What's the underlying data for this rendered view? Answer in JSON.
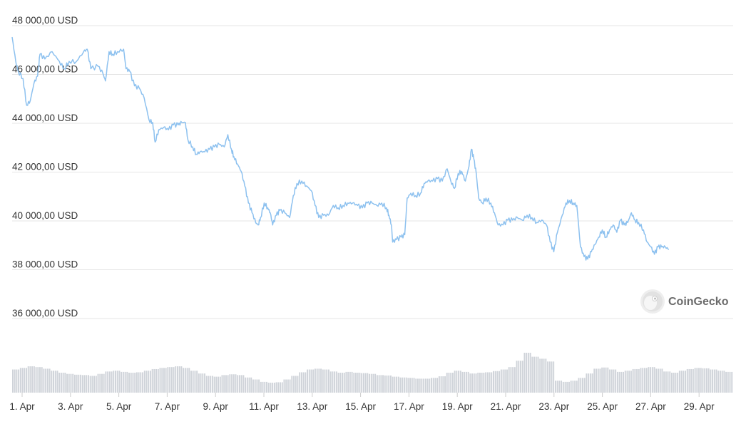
{
  "colors": {
    "line": "#8dc1ef",
    "volume": "#cfd3d9",
    "grid": "#e6e6e6",
    "text": "#333333"
  },
  "watermark": {
    "icon": "coingecko-logo-icon",
    "text": "CoinGecko"
  },
  "chart_data": {
    "type": "line",
    "title": "",
    "xlabel": "",
    "ylabel": "",
    "grid": true,
    "y_unit": "USD",
    "ylim": [
      35000,
      48500
    ],
    "xlim": [
      0.85,
      30.6
    ],
    "y_ticks": [
      {
        "value": 48000,
        "label": "48 000,00 USD"
      },
      {
        "value": 46000,
        "label": "46 000,00 USD"
      },
      {
        "value": 44000,
        "label": "44 000,00 USD"
      },
      {
        "value": 42000,
        "label": "42 000,00 USD"
      },
      {
        "value": 40000,
        "label": "40 000,00 USD"
      },
      {
        "value": 38000,
        "label": "38 000,00 USD"
      },
      {
        "value": 36000,
        "label": "36 000,00 USD"
      }
    ],
    "x_ticks": [
      {
        "day": 1,
        "label": "1. Apr"
      },
      {
        "day": 3,
        "label": "3. Apr"
      },
      {
        "day": 5,
        "label": "5. Apr"
      },
      {
        "day": 7,
        "label": "7. Apr"
      },
      {
        "day": 9,
        "label": "9. Apr"
      },
      {
        "day": 11,
        "label": "11. Apr"
      },
      {
        "day": 13,
        "label": "13. Apr"
      },
      {
        "day": 15,
        "label": "15. Apr"
      },
      {
        "day": 17,
        "label": "17. Apr"
      },
      {
        "day": 19,
        "label": "19. Apr"
      },
      {
        "day": 21,
        "label": "21. Apr"
      },
      {
        "day": 23,
        "label": "23. Apr"
      },
      {
        "day": 25,
        "label": "25. Apr"
      },
      {
        "day": 27,
        "label": "27. Apr"
      },
      {
        "day": 29,
        "label": "29. Apr"
      }
    ],
    "series": [
      {
        "values_note_free": true,
        "points": [
          [
            0.85,
            47300
          ],
          [
            1.0,
            46300
          ],
          [
            1.1,
            45900
          ],
          [
            1.3,
            45600
          ],
          [
            1.45,
            44500
          ],
          [
            1.6,
            44700
          ],
          [
            1.75,
            45400
          ],
          [
            1.9,
            45700
          ],
          [
            2.0,
            46600
          ],
          [
            2.2,
            46400
          ],
          [
            2.5,
            46700
          ],
          [
            2.8,
            46300
          ],
          [
            3.0,
            46000
          ],
          [
            3.2,
            46300
          ],
          [
            3.5,
            46300
          ],
          [
            3.8,
            46700
          ],
          [
            3.95,
            46800
          ],
          [
            4.1,
            46000
          ],
          [
            4.4,
            46100
          ],
          [
            4.6,
            45800
          ],
          [
            4.7,
            45500
          ],
          [
            4.85,
            46700
          ],
          [
            5.0,
            46600
          ],
          [
            5.2,
            46700
          ],
          [
            5.45,
            46800
          ],
          [
            5.55,
            46000
          ],
          [
            5.7,
            45900
          ],
          [
            5.9,
            45300
          ],
          [
            6.1,
            45200
          ],
          [
            6.3,
            44800
          ],
          [
            6.5,
            43900
          ],
          [
            6.65,
            43800
          ],
          [
            6.75,
            43000
          ],
          [
            6.9,
            43500
          ],
          [
            7.1,
            43600
          ],
          [
            7.3,
            43500
          ],
          [
            7.5,
            43700
          ],
          [
            7.7,
            43700
          ],
          [
            7.85,
            43800
          ],
          [
            8.0,
            43800
          ],
          [
            8.1,
            43100
          ],
          [
            8.3,
            42800
          ],
          [
            8.45,
            42500
          ],
          [
            8.6,
            42600
          ],
          [
            8.8,
            42600
          ],
          [
            9.0,
            42700
          ],
          [
            9.2,
            42800
          ],
          [
            9.4,
            42900
          ],
          [
            9.6,
            42800
          ],
          [
            9.75,
            43300
          ],
          [
            9.9,
            42700
          ],
          [
            10.0,
            42400
          ],
          [
            10.15,
            42100
          ],
          [
            10.3,
            41800
          ],
          [
            10.45,
            41200
          ],
          [
            10.6,
            40500
          ],
          [
            10.75,
            40100
          ],
          [
            10.9,
            39700
          ],
          [
            11.0,
            39600
          ],
          [
            11.1,
            39900
          ],
          [
            11.25,
            40500
          ],
          [
            11.4,
            40300
          ],
          [
            11.5,
            40100
          ],
          [
            11.6,
            39600
          ],
          [
            11.75,
            40000
          ],
          [
            11.9,
            40200
          ],
          [
            12.1,
            40100
          ],
          [
            12.3,
            39900
          ],
          [
            12.45,
            40800
          ],
          [
            12.6,
            41300
          ],
          [
            12.8,
            41400
          ],
          [
            13.0,
            41200
          ],
          [
            13.2,
            41000
          ],
          [
            13.35,
            40400
          ],
          [
            13.5,
            39900
          ],
          [
            13.7,
            40000
          ],
          [
            13.9,
            40000
          ],
          [
            14.1,
            40400
          ],
          [
            14.3,
            40300
          ],
          [
            14.5,
            40400
          ],
          [
            14.7,
            40500
          ],
          [
            14.9,
            40500
          ],
          [
            15.1,
            40400
          ],
          [
            15.3,
            40300
          ],
          [
            15.5,
            40500
          ],
          [
            15.7,
            40500
          ],
          [
            15.9,
            40400
          ],
          [
            16.1,
            40500
          ],
          [
            16.3,
            40300
          ],
          [
            16.4,
            40000
          ],
          [
            16.5,
            39600
          ],
          [
            16.55,
            38900
          ],
          [
            16.7,
            39000
          ],
          [
            16.9,
            39100
          ],
          [
            17.05,
            39200
          ],
          [
            17.15,
            40700
          ],
          [
            17.3,
            40900
          ],
          [
            17.5,
            40800
          ],
          [
            17.7,
            40900
          ],
          [
            17.85,
            41300
          ],
          [
            18.0,
            41400
          ],
          [
            18.2,
            41400
          ],
          [
            18.4,
            41500
          ],
          [
            18.6,
            41400
          ],
          [
            18.8,
            41900
          ],
          [
            18.95,
            41400
          ],
          [
            19.1,
            41100
          ],
          [
            19.25,
            41700
          ],
          [
            19.4,
            41800
          ],
          [
            19.55,
            41400
          ],
          [
            19.7,
            42000
          ],
          [
            19.8,
            42700
          ],
          [
            19.9,
            42300
          ],
          [
            20.0,
            41700
          ],
          [
            20.1,
            40700
          ],
          [
            20.25,
            40500
          ],
          [
            20.4,
            40700
          ],
          [
            20.6,
            40500
          ],
          [
            20.75,
            40100
          ],
          [
            20.9,
            39600
          ],
          [
            21.1,
            39600
          ],
          [
            21.3,
            39800
          ],
          [
            21.5,
            39800
          ],
          [
            21.7,
            39900
          ],
          [
            21.9,
            39800
          ],
          [
            22.1,
            40000
          ],
          [
            22.3,
            39900
          ],
          [
            22.5,
            39700
          ],
          [
            22.7,
            39800
          ],
          [
            22.9,
            39600
          ],
          [
            23.05,
            38900
          ],
          [
            23.2,
            38500
          ],
          [
            23.35,
            39300
          ],
          [
            23.55,
            40000
          ],
          [
            23.7,
            40500
          ],
          [
            23.85,
            40600
          ],
          [
            24.0,
            40500
          ],
          [
            24.15,
            40400
          ],
          [
            24.3,
            38700
          ],
          [
            24.45,
            38300
          ],
          [
            24.6,
            38200
          ],
          [
            24.75,
            38500
          ],
          [
            24.9,
            38800
          ],
          [
            25.05,
            39100
          ],
          [
            25.2,
            39400
          ],
          [
            25.35,
            39100
          ],
          [
            25.5,
            39400
          ],
          [
            25.65,
            39600
          ],
          [
            25.8,
            39300
          ],
          [
            25.95,
            39800
          ],
          [
            26.1,
            39600
          ],
          [
            26.25,
            39700
          ],
          [
            26.4,
            40100
          ],
          [
            26.55,
            39800
          ],
          [
            26.7,
            39700
          ],
          [
            26.9,
            39400
          ],
          [
            27.05,
            38900
          ],
          [
            27.2,
            38700
          ],
          [
            27.35,
            38400
          ],
          [
            27.5,
            38700
          ],
          [
            27.65,
            38700
          ],
          [
            27.8,
            38700
          ],
          [
            27.95,
            38600
          ]
        ]
      }
    ],
    "volume": {
      "note": "relative volume per time bucket, 0-1 scale",
      "values": [
        0.58,
        0.62,
        0.66,
        0.64,
        0.6,
        0.55,
        0.5,
        0.47,
        0.45,
        0.44,
        0.42,
        0.47,
        0.53,
        0.55,
        0.52,
        0.5,
        0.51,
        0.55,
        0.59,
        0.62,
        0.64,
        0.66,
        0.62,
        0.55,
        0.48,
        0.42,
        0.4,
        0.44,
        0.46,
        0.44,
        0.38,
        0.33,
        0.27,
        0.25,
        0.26,
        0.33,
        0.42,
        0.51,
        0.58,
        0.6,
        0.58,
        0.53,
        0.5,
        0.52,
        0.5,
        0.49,
        0.47,
        0.44,
        0.43,
        0.4,
        0.38,
        0.37,
        0.35,
        0.35,
        0.37,
        0.41,
        0.5,
        0.55,
        0.52,
        0.48,
        0.5,
        0.51,
        0.54,
        0.58,
        0.64,
        0.8,
        1.0,
        0.9,
        0.85,
        0.78,
        0.3,
        0.27,
        0.3,
        0.37,
        0.48,
        0.6,
        0.63,
        0.58,
        0.52,
        0.55,
        0.59,
        0.62,
        0.64,
        0.6,
        0.53,
        0.5,
        0.55,
        0.59,
        0.62,
        0.61,
        0.58,
        0.55,
        0.52
      ]
    }
  }
}
